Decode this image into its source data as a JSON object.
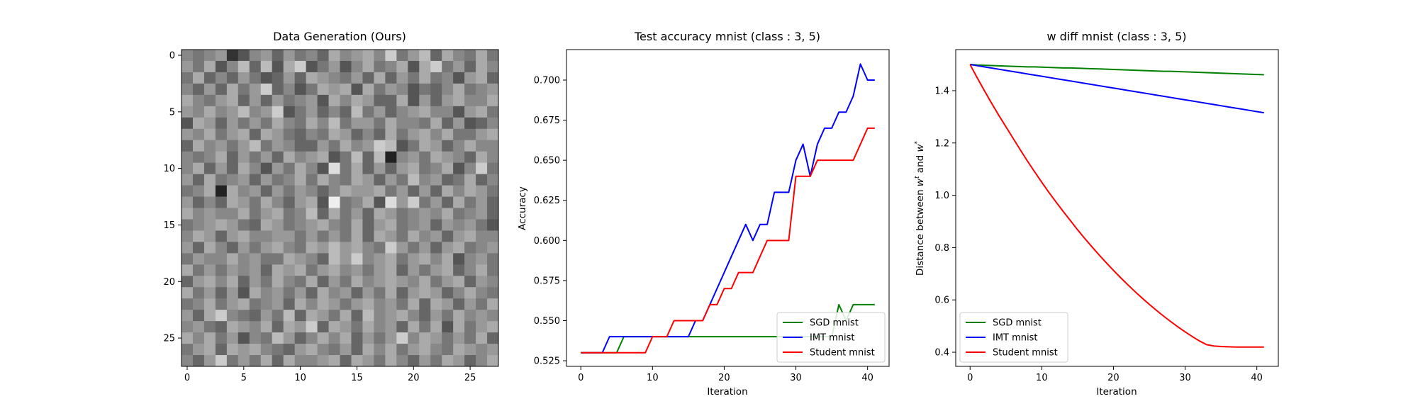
{
  "chart_data": [
    {
      "type": "heatmap",
      "title": "Data Generation (Ours)",
      "xlabel": "",
      "ylabel": "",
      "xlim": [
        -0.5,
        27.5
      ],
      "ylim": [
        27.5,
        -0.5
      ],
      "xticks": [
        0,
        5,
        10,
        15,
        20,
        25
      ],
      "yticks": [
        0,
        5,
        10,
        15,
        20,
        25
      ],
      "grid": false,
      "colormap": "grayscale",
      "rows": 28,
      "cols": 28,
      "pixel_values": [
        "8789358969786A89A8C79B6A87A7",
        "97A58B6B5AC57958A78A5AC796A8",
        "7A686975696A98796A697A7859A6",
        "8696A79C6857A9A5A7985768A789",
        "A879A69697895A8A966A5969A88A",
        "98A89B89C579686B79689A8859A7",
        "5A969797A87A8B7997A887A69568",
        "98A79A6A97687A9686A79A8A779A",
        "6A8979B7986697A89CB57A968A88",
        "878A69796A89A57B6B2897A986A8",
        "8A696A8597A85D7A6969A78A58C7",
        "96A7896978A7A87A9697B8967A68",
        "78A2A896979868A99A79696A8A97",
        "9686A97A869A5E78A5D9C796A796",
        "A8988A79A78B6A796A97898A7896",
        "789A976A9789A87A69A789698975",
        "8A969A889979797A6A97A8969A88",
        "96A86979A87A9B9A87C97969A789",
        "7988A8977A986B9C89A79A8A5897",
        "A7979896A9A79A8979A6979A68A7",
        "69A8A697A87A697A89A98A79A698",
        "A79695A89796A89697A69A968A87",
        "78A79A7896A8A979A897A6A9697A",
        "96AC87697B6A97A6B89A8697A898",
        "8976A98A6A9C6A97A896A7A5A79A",
        "A8A79587B968A8A6979C8A9797A6",
        "79A6A9A8769A8796A8A79A87A989",
        "869C797A6A889A6A97A8697A968A"
      ]
    },
    {
      "type": "line",
      "title": "Test accuracy mnist (class : 3, 5)",
      "xlabel": "Iteration",
      "ylabel": "Accuracy",
      "xlim": [
        -2,
        43
      ],
      "ylim": [
        0.5215,
        0.719
      ],
      "xticks": [
        0,
        10,
        20,
        30,
        40
      ],
      "yticks": [
        0.525,
        0.55,
        0.575,
        0.6,
        0.625,
        0.65,
        0.675,
        0.7
      ],
      "ytick_labels": [
        "0.525",
        "0.550",
        "0.575",
        "0.600",
        "0.625",
        "0.650",
        "0.675",
        "0.700"
      ],
      "grid": false,
      "legend_position": "lower-right",
      "x": [
        0,
        1,
        2,
        3,
        4,
        5,
        6,
        7,
        8,
        9,
        10,
        11,
        12,
        13,
        14,
        15,
        16,
        17,
        18,
        19,
        20,
        21,
        22,
        23,
        24,
        25,
        26,
        27,
        28,
        29,
        30,
        31,
        32,
        33,
        34,
        35,
        36,
        37,
        38,
        39,
        40,
        41
      ],
      "series": [
        {
          "name": "SGD mnist",
          "color": "#008000",
          "values": [
            0.53,
            0.53,
            0.53,
            0.53,
            0.53,
            0.53,
            0.54,
            0.54,
            0.54,
            0.54,
            0.54,
            0.54,
            0.54,
            0.54,
            0.54,
            0.54,
            0.54,
            0.54,
            0.54,
            0.54,
            0.54,
            0.54,
            0.54,
            0.54,
            0.54,
            0.54,
            0.54,
            0.54,
            0.54,
            0.54,
            0.54,
            0.54,
            0.54,
            0.54,
            0.54,
            0.54,
            0.56,
            0.55,
            0.56,
            0.56,
            0.56,
            0.56
          ]
        },
        {
          "name": "IMT mnist",
          "color": "#0000ff",
          "values": [
            0.53,
            0.53,
            0.53,
            0.53,
            0.54,
            0.54,
            0.54,
            0.54,
            0.54,
            0.54,
            0.54,
            0.54,
            0.54,
            0.54,
            0.54,
            0.54,
            0.55,
            0.55,
            0.56,
            0.57,
            0.58,
            0.59,
            0.6,
            0.61,
            0.6,
            0.61,
            0.61,
            0.63,
            0.63,
            0.63,
            0.65,
            0.66,
            0.64,
            0.66,
            0.67,
            0.67,
            0.68,
            0.68,
            0.69,
            0.71,
            0.7,
            0.7
          ]
        },
        {
          "name": "Student mnist",
          "color": "#ff0000",
          "values": [
            0.53,
            0.53,
            0.53,
            0.53,
            0.53,
            0.53,
            0.53,
            0.53,
            0.53,
            0.53,
            0.54,
            0.54,
            0.54,
            0.55,
            0.55,
            0.55,
            0.55,
            0.55,
            0.56,
            0.56,
            0.57,
            0.57,
            0.58,
            0.58,
            0.58,
            0.59,
            0.6,
            0.6,
            0.6,
            0.6,
            0.64,
            0.64,
            0.64,
            0.65,
            0.65,
            0.65,
            0.65,
            0.65,
            0.65,
            0.66,
            0.67,
            0.67
          ]
        }
      ]
    },
    {
      "type": "line",
      "title": "w diff mnist (class : 3, 5)",
      "xlabel": "Iteration",
      "ylabel_prefix": "Distance between ",
      "ylabel_w1": "w",
      "ylabel_w1_sup": "t",
      "ylabel_mid": " and ",
      "ylabel_w2": "w",
      "ylabel_w2_sup": "*",
      "xlim": [
        -2,
        43
      ],
      "ylim": [
        0.346,
        1.557
      ],
      "xticks": [
        0,
        10,
        20,
        30,
        40
      ],
      "yticks": [
        0.4,
        0.6,
        0.8,
        1.0,
        1.2,
        1.4
      ],
      "ytick_labels": [
        "0.4",
        "0.6",
        "0.8",
        "1.0",
        "1.2",
        "1.4"
      ],
      "grid": false,
      "legend_position": "lower-left",
      "x": [
        0,
        1,
        2,
        3,
        4,
        5,
        6,
        7,
        8,
        9,
        10,
        11,
        12,
        13,
        14,
        15,
        16,
        17,
        18,
        19,
        20,
        21,
        22,
        23,
        24,
        25,
        26,
        27,
        28,
        29,
        30,
        31,
        32,
        33,
        34,
        35,
        36,
        37,
        38,
        39,
        40,
        41
      ],
      "series": [
        {
          "name": "SGD mnist",
          "color": "#008000",
          "values": [
            1.5,
            1.498,
            1.497,
            1.496,
            1.495,
            1.494,
            1.493,
            1.492,
            1.491,
            1.491,
            1.49,
            1.489,
            1.488,
            1.487,
            1.487,
            1.486,
            1.485,
            1.484,
            1.483,
            1.482,
            1.481,
            1.48,
            1.479,
            1.478,
            1.477,
            1.476,
            1.475,
            1.474,
            1.474,
            1.473,
            1.472,
            1.471,
            1.47,
            1.469,
            1.468,
            1.467,
            1.466,
            1.465,
            1.464,
            1.463,
            1.462,
            1.461
          ]
        },
        {
          "name": "IMT mnist",
          "color": "#0000ff",
          "values": [
            1.5,
            1.4955,
            1.491,
            1.4865,
            1.482,
            1.4775,
            1.473,
            1.4685,
            1.464,
            1.4595,
            1.455,
            1.4505,
            1.446,
            1.4415,
            1.437,
            1.4325,
            1.428,
            1.4235,
            1.419,
            1.4145,
            1.41,
            1.4055,
            1.401,
            1.3965,
            1.392,
            1.3875,
            1.383,
            1.3785,
            1.374,
            1.3695,
            1.365,
            1.3605,
            1.356,
            1.3515,
            1.347,
            1.3425,
            1.338,
            1.3335,
            1.329,
            1.3245,
            1.32,
            1.3155
          ]
        },
        {
          "name": "Student mnist",
          "color": "#ff0000",
          "values": [
            1.5,
            1.449,
            1.4,
            1.352,
            1.306,
            1.262,
            1.218,
            1.174,
            1.131,
            1.09,
            1.05,
            1.011,
            0.974,
            0.938,
            0.903,
            0.868,
            0.835,
            0.803,
            0.772,
            0.742,
            0.713,
            0.685,
            0.658,
            0.632,
            0.607,
            0.583,
            0.56,
            0.538,
            0.517,
            0.497,
            0.478,
            0.46,
            0.443,
            0.429,
            0.424,
            0.422,
            0.421,
            0.42,
            0.42,
            0.42,
            0.42,
            0.42
          ]
        }
      ]
    }
  ]
}
